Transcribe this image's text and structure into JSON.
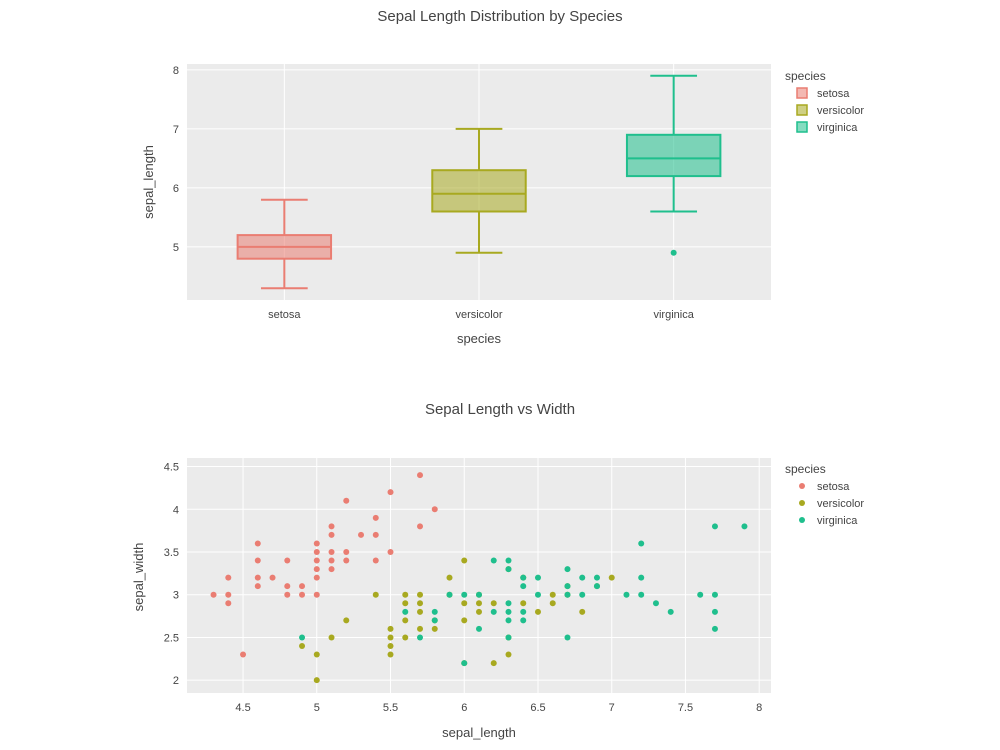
{
  "colors": {
    "setosa": "#ea7d72",
    "versicolor": "#a8a920",
    "virginica": "#1fbf8d",
    "plot_bg": "#ebebeb",
    "grid": "#ffffff"
  },
  "chart_data": [
    {
      "type": "box",
      "title": "Sepal Length Distribution by Species",
      "xlabel": "species",
      "ylabel": "sepal_length",
      "ylim": [
        4.1,
        8.1
      ],
      "yticks": [
        5,
        6,
        7,
        8
      ],
      "categories": [
        "setosa",
        "versicolor",
        "virginica"
      ],
      "legend": {
        "title": "species",
        "position": "top-right",
        "items": [
          "setosa",
          "versicolor",
          "virginica"
        ]
      },
      "boxes": [
        {
          "name": "setosa",
          "min": 4.3,
          "q1": 4.8,
          "median": 5.0,
          "q3": 5.2,
          "max": 5.8,
          "outliers": []
        },
        {
          "name": "versicolor",
          "min": 4.9,
          "q1": 5.6,
          "median": 5.9,
          "q3": 6.3,
          "max": 7.0,
          "outliers": []
        },
        {
          "name": "virginica",
          "min": 5.6,
          "q1": 6.2,
          "median": 6.5,
          "q3": 6.9,
          "max": 7.9,
          "outliers": [
            4.9
          ]
        }
      ]
    },
    {
      "type": "scatter",
      "title": "Sepal Length vs Width",
      "xlabel": "sepal_length",
      "ylabel": "sepal_width",
      "xlim": [
        4.12,
        8.08
      ],
      "ylim": [
        1.85,
        4.6
      ],
      "xticks": [
        4.5,
        5,
        5.5,
        6,
        6.5,
        7,
        7.5,
        8
      ],
      "yticks": [
        2,
        2.5,
        3,
        3.5,
        4,
        4.5
      ],
      "legend": {
        "title": "species",
        "position": "top-right",
        "items": [
          "setosa",
          "versicolor",
          "virginica"
        ]
      },
      "series": [
        {
          "name": "setosa",
          "points": [
            [
              4.3,
              3.0
            ],
            [
              4.4,
              2.9
            ],
            [
              4.4,
              3.0
            ],
            [
              4.4,
              3.2
            ],
            [
              4.5,
              2.3
            ],
            [
              4.6,
              3.1
            ],
            [
              4.6,
              3.2
            ],
            [
              4.6,
              3.4
            ],
            [
              4.6,
              3.6
            ],
            [
              4.7,
              3.2
            ],
            [
              4.8,
              3.0
            ],
            [
              4.8,
              3.1
            ],
            [
              4.8,
              3.4
            ],
            [
              4.9,
              3.0
            ],
            [
              4.9,
              3.1
            ],
            [
              5.0,
              3.0
            ],
            [
              5.0,
              3.2
            ],
            [
              5.0,
              3.3
            ],
            [
              5.0,
              3.4
            ],
            [
              5.0,
              3.5
            ],
            [
              5.0,
              3.6
            ],
            [
              5.1,
              3.3
            ],
            [
              5.1,
              3.4
            ],
            [
              5.1,
              3.5
            ],
            [
              5.1,
              3.7
            ],
            [
              5.1,
              3.8
            ],
            [
              5.2,
              3.4
            ],
            [
              5.2,
              3.5
            ],
            [
              5.2,
              4.1
            ],
            [
              5.3,
              3.7
            ],
            [
              5.4,
              3.4
            ],
            [
              5.4,
              3.7
            ],
            [
              5.4,
              3.9
            ],
            [
              5.5,
              3.5
            ],
            [
              5.5,
              4.2
            ],
            [
              5.7,
              3.8
            ],
            [
              5.7,
              4.4
            ],
            [
              5.8,
              4.0
            ]
          ]
        },
        {
          "name": "versicolor",
          "points": [
            [
              4.9,
              2.4
            ],
            [
              5.0,
              2.0
            ],
            [
              5.0,
              2.3
            ],
            [
              5.1,
              2.5
            ],
            [
              5.2,
              2.7
            ],
            [
              5.4,
              3.0
            ],
            [
              5.5,
              2.3
            ],
            [
              5.5,
              2.4
            ],
            [
              5.5,
              2.5
            ],
            [
              5.5,
              2.6
            ],
            [
              5.6,
              2.5
            ],
            [
              5.6,
              2.7
            ],
            [
              5.6,
              2.9
            ],
            [
              5.6,
              3.0
            ],
            [
              5.7,
              2.6
            ],
            [
              5.7,
              2.8
            ],
            [
              5.7,
              2.9
            ],
            [
              5.7,
              3.0
            ],
            [
              5.8,
              2.6
            ],
            [
              5.8,
              2.7
            ],
            [
              5.9,
              3.0
            ],
            [
              5.9,
              3.2
            ],
            [
              6.0,
              2.2
            ],
            [
              6.0,
              2.7
            ],
            [
              6.0,
              2.9
            ],
            [
              6.0,
              3.4
            ],
            [
              6.1,
              2.8
            ],
            [
              6.1,
              2.9
            ],
            [
              6.1,
              3.0
            ],
            [
              6.2,
              2.2
            ],
            [
              6.2,
              2.9
            ],
            [
              6.3,
              2.3
            ],
            [
              6.3,
              2.5
            ],
            [
              6.3,
              3.3
            ],
            [
              6.4,
              2.9
            ],
            [
              6.4,
              3.2
            ],
            [
              6.5,
              2.8
            ],
            [
              6.6,
              2.9
            ],
            [
              6.6,
              3.0
            ],
            [
              6.7,
              3.0
            ],
            [
              6.7,
              3.1
            ],
            [
              6.8,
              2.8
            ],
            [
              6.9,
              3.1
            ],
            [
              7.0,
              3.2
            ]
          ]
        },
        {
          "name": "virginica",
          "points": [
            [
              4.9,
              2.5
            ],
            [
              5.6,
              2.8
            ],
            [
              5.7,
              2.5
            ],
            [
              5.8,
              2.7
            ],
            [
              5.8,
              2.8
            ],
            [
              5.9,
              3.0
            ],
            [
              6.0,
              2.2
            ],
            [
              6.0,
              3.0
            ],
            [
              6.1,
              2.6
            ],
            [
              6.1,
              3.0
            ],
            [
              6.2,
              2.8
            ],
            [
              6.2,
              3.4
            ],
            [
              6.3,
              2.5
            ],
            [
              6.3,
              2.7
            ],
            [
              6.3,
              2.8
            ],
            [
              6.3,
              2.9
            ],
            [
              6.3,
              3.3
            ],
            [
              6.3,
              3.4
            ],
            [
              6.4,
              2.7
            ],
            [
              6.4,
              2.8
            ],
            [
              6.4,
              3.1
            ],
            [
              6.4,
              3.2
            ],
            [
              6.5,
              3.0
            ],
            [
              6.5,
              3.2
            ],
            [
              6.7,
              2.5
            ],
            [
              6.7,
              3.0
            ],
            [
              6.7,
              3.1
            ],
            [
              6.7,
              3.3
            ],
            [
              6.8,
              3.0
            ],
            [
              6.8,
              3.2
            ],
            [
              6.9,
              3.1
            ],
            [
              6.9,
              3.2
            ],
            [
              7.1,
              3.0
            ],
            [
              7.2,
              3.0
            ],
            [
              7.2,
              3.2
            ],
            [
              7.2,
              3.6
            ],
            [
              7.3,
              2.9
            ],
            [
              7.4,
              2.8
            ],
            [
              7.6,
              3.0
            ],
            [
              7.7,
              2.6
            ],
            [
              7.7,
              2.8
            ],
            [
              7.7,
              3.0
            ],
            [
              7.7,
              3.8
            ],
            [
              7.9,
              3.8
            ]
          ]
        }
      ]
    }
  ]
}
